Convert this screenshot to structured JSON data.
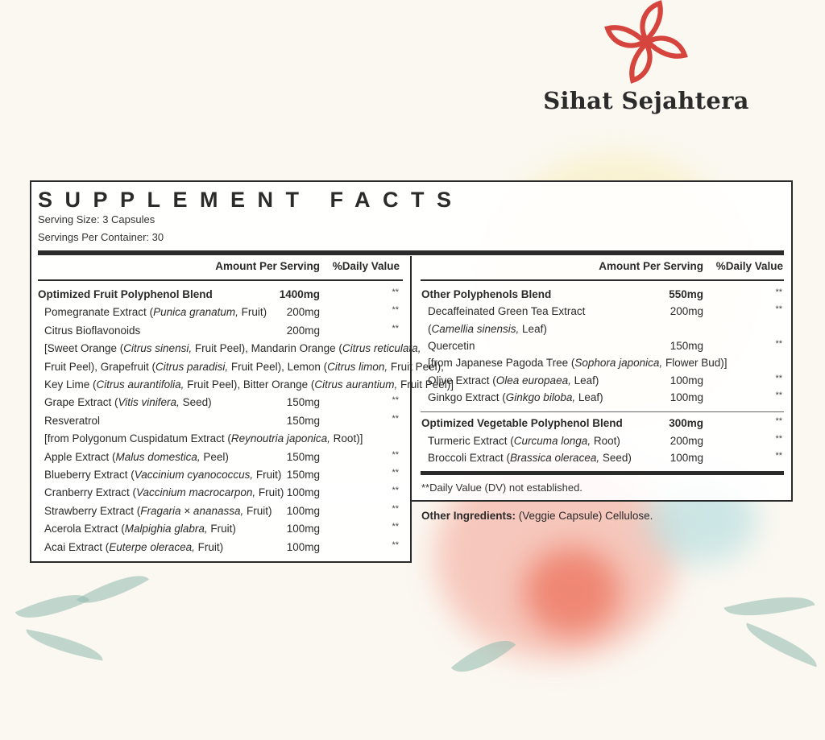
{
  "brand": {
    "name": "Sihat Sejahtera",
    "accent": "#d6453d"
  },
  "label": {
    "title": "SUPPLEMENT FACTS",
    "serving_size": "Serving Size: 3 Capsules",
    "servings_per_container": "Servings Per Container: 30",
    "header_amount": "Amount Per Serving",
    "header_dv": "%Daily Value",
    "left_rows": [
      {
        "bold": true,
        "indent": false,
        "parts": [
          {
            "t": "Optimized Fruit Polyphenol Blend"
          }
        ],
        "amount": "1400mg",
        "dv": "**"
      },
      {
        "indent": true,
        "parts": [
          {
            "t": "Pomegranate Extract ("
          },
          {
            "t": "Punica granatum,",
            "i": true
          },
          {
            "t": " Fruit)"
          }
        ],
        "amount": "200mg",
        "dv": "**"
      },
      {
        "indent": true,
        "parts": [
          {
            "t": "Citrus Bioflavonoids"
          }
        ],
        "amount": "200mg",
        "dv": "**"
      },
      {
        "indent": true,
        "parts": [
          {
            "t": "[Sweet Orange ("
          },
          {
            "t": "Citrus sinensi,",
            "i": true
          },
          {
            "t": " Fruit Peel), Mandarin Orange ("
          },
          {
            "t": "Citrus reticulata,",
            "i": true
          }
        ],
        "amount": "",
        "dv": ""
      },
      {
        "indent": true,
        "parts": [
          {
            "t": "Fruit Peel), Grapefruit ("
          },
          {
            "t": "Citrus paradisi,",
            "i": true
          },
          {
            "t": " Fruit Peel), Lemon ("
          },
          {
            "t": "Citrus limon,",
            "i": true
          },
          {
            "t": " Fruit Peel),"
          }
        ],
        "amount": "",
        "dv": ""
      },
      {
        "indent": true,
        "parts": [
          {
            "t": "Key Lime ("
          },
          {
            "t": "Citrus aurantifolia,",
            "i": true
          },
          {
            "t": " Fruit Peel), Bitter Orange ("
          },
          {
            "t": "Citrus aurantium,",
            "i": true
          },
          {
            "t": " Fruit Peel)]"
          }
        ],
        "amount": "",
        "dv": ""
      },
      {
        "indent": true,
        "parts": [
          {
            "t": "Grape Extract ("
          },
          {
            "t": "Vitis vinifera,",
            "i": true
          },
          {
            "t": " Seed)"
          }
        ],
        "amount": "150mg",
        "dv": "**"
      },
      {
        "indent": true,
        "parts": [
          {
            "t": "Resveratrol"
          }
        ],
        "amount": "150mg",
        "dv": "**"
      },
      {
        "indent": true,
        "parts": [
          {
            "t": "[from Polygonum Cuspidatum Extract ("
          },
          {
            "t": "Reynoutria japonica,",
            "i": true
          },
          {
            "t": " Root)]"
          }
        ],
        "amount": "",
        "dv": ""
      },
      {
        "indent": true,
        "parts": [
          {
            "t": "Apple Extract ("
          },
          {
            "t": "Malus domestica,",
            "i": true
          },
          {
            "t": " Peel)"
          }
        ],
        "amount": "150mg",
        "dv": "**"
      },
      {
        "indent": true,
        "parts": [
          {
            "t": "Blueberry Extract ("
          },
          {
            "t": "Vaccinium cyanococcus,",
            "i": true
          },
          {
            "t": " Fruit)"
          }
        ],
        "amount": "150mg",
        "dv": "**"
      },
      {
        "indent": true,
        "parts": [
          {
            "t": "Cranberry Extract ("
          },
          {
            "t": "Vaccinium macrocarpon,",
            "i": true
          },
          {
            "t": " Fruit)"
          }
        ],
        "amount": "100mg",
        "dv": "**"
      },
      {
        "indent": true,
        "parts": [
          {
            "t": "Strawberry Extract ("
          },
          {
            "t": "Fragaria × ananassa,",
            "i": true
          },
          {
            "t": " Fruit)"
          }
        ],
        "amount": "100mg",
        "dv": "**"
      },
      {
        "indent": true,
        "parts": [
          {
            "t": "Acerola Extract ("
          },
          {
            "t": "Malpighia glabra,",
            "i": true
          },
          {
            "t": " Fruit)"
          }
        ],
        "amount": "100mg",
        "dv": "**"
      },
      {
        "indent": true,
        "parts": [
          {
            "t": "Acai Extract ("
          },
          {
            "t": "Euterpe oleracea,",
            "i": true
          },
          {
            "t": " Fruit)"
          }
        ],
        "amount": "100mg",
        "dv": "**"
      }
    ],
    "right_rows_a": [
      {
        "bold": true,
        "indent": false,
        "parts": [
          {
            "t": "Other Polyphenols Blend"
          }
        ],
        "amount": "550mg",
        "dv": "**"
      },
      {
        "indent": true,
        "parts": [
          {
            "t": "Decaffeinated Green Tea  Extract"
          }
        ],
        "amount": "200mg",
        "dv": "**"
      },
      {
        "indent": true,
        "parts": [
          {
            "t": "("
          },
          {
            "t": "Camellia sinensis,",
            "i": true
          },
          {
            "t": " Leaf)"
          }
        ],
        "amount": "",
        "dv": ""
      },
      {
        "indent": true,
        "parts": [
          {
            "t": "Quercetin"
          }
        ],
        "amount": "150mg",
        "dv": "**"
      },
      {
        "indent": true,
        "parts": [
          {
            "t": "[from Japanese Pagoda Tree ("
          },
          {
            "t": "Sophora japonica,",
            "i": true
          },
          {
            "t": " Flower Bud)]"
          }
        ],
        "amount": "",
        "dv": ""
      },
      {
        "indent": true,
        "parts": [
          {
            "t": "Olive Extract ("
          },
          {
            "t": "Olea europaea,",
            "i": true
          },
          {
            "t": " Leaf)"
          }
        ],
        "amount": "100mg",
        "dv": "**"
      },
      {
        "indent": true,
        "parts": [
          {
            "t": "Ginkgo Extract ("
          },
          {
            "t": "Ginkgo biloba,",
            "i": true
          },
          {
            "t": " Leaf)"
          }
        ],
        "amount": "100mg",
        "dv": "**"
      }
    ],
    "right_rows_b": [
      {
        "bold": true,
        "indent": false,
        "parts": [
          {
            "t": "Optimized Vegetable Polyphenol Blend"
          }
        ],
        "amount": "300mg",
        "dv": "**"
      },
      {
        "indent": true,
        "parts": [
          {
            "t": "Turmeric Extract ("
          },
          {
            "t": "Curcuma longa,",
            "i": true
          },
          {
            "t": " Root)"
          }
        ],
        "amount": "200mg",
        "dv": "**"
      },
      {
        "indent": true,
        "parts": [
          {
            "t": "Broccoli Extract ("
          },
          {
            "t": "Brassica oleracea,",
            "i": true
          },
          {
            "t": " Seed)"
          }
        ],
        "amount": "100mg",
        "dv": "**"
      }
    ],
    "footnote": "**Daily Value (DV) not established.",
    "other_ingredients_label": "Other Ingredients:",
    "other_ingredients_value": " (Veggie Capsule) Cellulose."
  }
}
